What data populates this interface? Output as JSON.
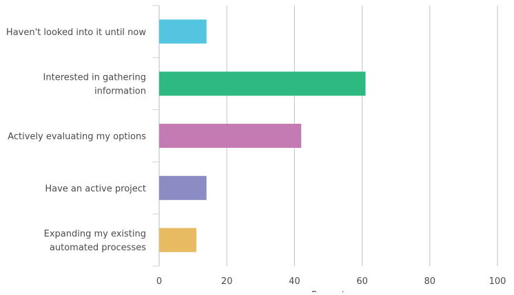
{
  "chart_data": {
    "type": "bar",
    "orientation": "horizontal",
    "categories": [
      [
        "Haven't looked into it until now"
      ],
      [
        "Interested in gathering",
        "information"
      ],
      [
        "Actively evaluating my options"
      ],
      [
        "Have an active project"
      ],
      [
        "Expanding my existing",
        "automated processes"
      ]
    ],
    "values": [
      14,
      61,
      42,
      14,
      11
    ],
    "colors": [
      "#54c5e0",
      "#2eb981",
      "#c47bb4",
      "#8c8cc4",
      "#e8bb62"
    ],
    "xlim": [
      0,
      100
    ],
    "xticks": [
      0,
      20,
      40,
      60,
      80,
      100
    ],
    "xlabel": "Percent",
    "grid": "vertical",
    "legend": "none"
  }
}
